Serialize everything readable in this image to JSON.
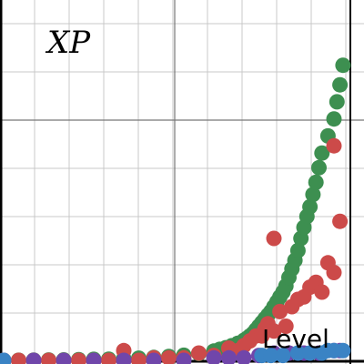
{
  "chart_data": {
    "type": "scatter",
    "title": "",
    "ylabel": "XP",
    "xlabel": "Level",
    "grid": true,
    "legend": "none",
    "series": [
      {
        "color": "#3d8f50",
        "points": [
          [
            0,
            0
          ],
          [
            0.5,
            0.05
          ],
          [
            1,
            0.1
          ],
          [
            1.5,
            0.15
          ],
          [
            2,
            0.2
          ],
          [
            2.5,
            0.3
          ],
          [
            3,
            0.4
          ],
          [
            3.5,
            0.5
          ],
          [
            4,
            0.7
          ],
          [
            4.5,
            0.9
          ],
          [
            5,
            1.2
          ],
          [
            5.5,
            1.6
          ],
          [
            6,
            2.1
          ],
          [
            6.5,
            2.8
          ],
          [
            7,
            3.8
          ],
          [
            7.2,
            4.5
          ],
          [
            7.4,
            5.2
          ],
          [
            7.6,
            6
          ],
          [
            7.8,
            7
          ],
          [
            8,
            8.2
          ],
          [
            8.1,
            9
          ],
          [
            8.2,
            10
          ],
          [
            8.3,
            11
          ],
          [
            8.4,
            12.5
          ],
          [
            8.5,
            14
          ],
          [
            8.6,
            15.5
          ],
          [
            8.7,
            17
          ],
          [
            8.8,
            18.5
          ],
          [
            8.9,
            20
          ],
          [
            9,
            22
          ],
          [
            9.1,
            24
          ],
          [
            9.2,
            26
          ],
          [
            9.3,
            28
          ],
          [
            9.4,
            30.5
          ],
          [
            9.5,
            34
          ],
          [
            9.6,
            37.5
          ],
          [
            9.7,
            41
          ],
          [
            9.8,
            45
          ],
          [
            9.9,
            50
          ],
          [
            10,
            54.5
          ],
          [
            10.1,
            59
          ],
          [
            10.2,
            63
          ],
          [
            10.3,
            68
          ],
          [
            10.4,
            73
          ],
          [
            10.5,
            79
          ],
          [
            10.6,
            85
          ],
          [
            10.8,
            92
          ],
          [
            11,
            99
          ],
          [
            11.1,
            106
          ],
          [
            11.2,
            113
          ],
          [
            11.3,
            121
          ]
        ]
      },
      {
        "color": "#cc4a49",
        "points": [
          [
            0,
            0
          ],
          [
            0.5,
            0
          ],
          [
            1,
            0
          ],
          [
            1.5,
            0
          ],
          [
            2,
            0
          ],
          [
            2.5,
            0
          ],
          [
            3,
            0
          ],
          [
            3.5,
            0
          ],
          [
            4,
            4
          ],
          [
            4.5,
            0
          ],
          [
            5,
            1
          ],
          [
            5.5,
            1
          ],
          [
            6,
            1
          ],
          [
            6.5,
            3
          ],
          [
            7,
            2
          ],
          [
            7.5,
            5
          ],
          [
            7.8,
            4
          ],
          [
            8,
            6
          ],
          [
            8.2,
            8
          ],
          [
            8.4,
            10
          ],
          [
            8.6,
            10
          ],
          [
            8.7,
            13
          ],
          [
            8.8,
            15
          ],
          [
            9,
            12
          ],
          [
            9,
            50
          ],
          [
            9.2,
            20
          ],
          [
            9.4,
            14
          ],
          [
            9.6,
            22
          ],
          [
            9.8,
            25
          ],
          [
            10,
            26
          ],
          [
            10.2,
            30
          ],
          [
            10.4,
            32
          ],
          [
            10.6,
            28
          ],
          [
            10.8,
            40
          ],
          [
            11,
            36
          ],
          [
            11,
            88
          ],
          [
            11.2,
            57
          ]
        ]
      },
      {
        "color": "#7046aa",
        "points": [
          [
            0,
            0
          ],
          [
            1,
            0
          ],
          [
            2,
            0
          ],
          [
            3,
            0
          ],
          [
            4,
            0
          ],
          [
            5,
            0
          ],
          [
            6,
            0
          ],
          [
            7,
            1
          ],
          [
            7.5,
            1
          ],
          [
            8,
            1
          ],
          [
            8.5,
            2
          ],
          [
            9,
            3
          ],
          [
            9.5,
            3
          ],
          [
            10,
            3
          ],
          [
            10.5,
            3
          ],
          [
            11,
            4
          ],
          [
            11.2,
            4
          ]
        ]
      },
      {
        "color": "#3a83c4",
        "points": [
          [
            0,
            0
          ],
          [
            8.6,
            2
          ],
          [
            8.9,
            2
          ],
          [
            9.3,
            2
          ],
          [
            9.8,
            3
          ],
          [
            10.2,
            3
          ],
          [
            10.6,
            3
          ],
          [
            10.8,
            4
          ],
          [
            11,
            4
          ],
          [
            11.3,
            4
          ]
        ]
      }
    ]
  }
}
